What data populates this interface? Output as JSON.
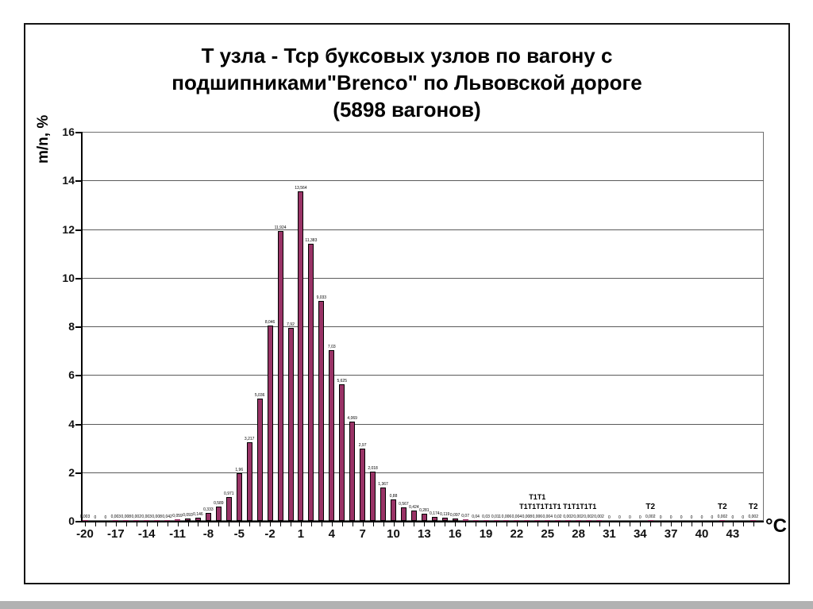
{
  "slide": {
    "title": {
      "line1": "Т узла - Тср буксовых узлов по вагону с",
      "line2": "подшипниками\"Brenco\" по Львовской дороге",
      "line3": "(5898 вагонов)"
    }
  },
  "chart_data": {
    "type": "bar",
    "title": "Т узла - Тср буксовых узлов по вагону с подшипниками\"Brenco\" по Львовской дороге (5898 вагонов)",
    "xlabel": "°C",
    "ylabel": "m/n, %",
    "xlim": [
      -20,
      46
    ],
    "ylim": [
      0,
      16
    ],
    "grid": "horizontal",
    "legend": "none",
    "bar_color": "#993366",
    "bar_border_color": "#000000",
    "y_ticks": [
      0,
      2,
      4,
      6,
      8,
      10,
      12,
      14,
      16
    ],
    "x_tick_labels": [
      -20,
      -17,
      -14,
      -11,
      -8,
      -5,
      -2,
      1,
      4,
      7,
      10,
      13,
      16,
      19,
      22,
      25,
      28,
      31,
      34,
      37,
      40,
      43
    ],
    "x": [
      -20,
      -19,
      -18,
      -17,
      -16,
      -15,
      -14,
      -13,
      -12,
      -11,
      -10,
      -9,
      -8,
      -7,
      -6,
      -5,
      -4,
      -3,
      -2,
      -1,
      0,
      1,
      2,
      3,
      4,
      5,
      6,
      7,
      8,
      9,
      10,
      11,
      12,
      13,
      14,
      15,
      16,
      17,
      18,
      19,
      20,
      21,
      22,
      23,
      24,
      25,
      26,
      27,
      28,
      29,
      30,
      31,
      32,
      33,
      34,
      35,
      36,
      37,
      38,
      39,
      40,
      41,
      42,
      43,
      44,
      45
    ],
    "values": [
      0.003,
      0,
      0,
      0.003,
      0.008,
      0.002,
      0.003,
      0.008,
      0.042,
      0.059,
      0.093,
      0.146,
      0.333,
      0.589,
      0.971,
      1.96,
      3.217,
      5.036,
      8.046,
      11.924,
      7.92,
      13.564,
      11.383,
      9.033,
      7.03,
      5.625,
      4.069,
      2.97,
      2.018,
      1.367,
      0.88,
      0.567,
      0.424,
      0.281,
      0.174,
      0.119,
      0.097,
      0.07,
      0.04,
      0.03,
      0.011,
      0.006,
      0.004,
      0.008,
      0.006,
      0.004,
      0.02,
      0.002,
      0.002,
      0.002,
      0.002,
      0,
      0,
      0,
      0,
      0.002,
      0,
      0,
      0,
      0,
      0,
      0,
      0.002,
      0,
      0,
      0.002
    ],
    "labels": [
      "0,003",
      "0",
      "0",
      "0,003",
      "0,008",
      "0,002",
      "0,003",
      "0,008",
      "0,042",
      "0,059",
      "0,093",
      "0,146",
      "0,333",
      "0,589",
      "0,971",
      "1,96",
      "3,217",
      "5,036",
      "8,046",
      "11,924",
      "7,92",
      "13,564",
      "11,383",
      "9,033",
      "7,03",
      "5,625",
      "4,069",
      "2,97",
      "2,018",
      "1,367",
      "0,88",
      "0,567",
      "0,424",
      "0,281",
      "0,174",
      "0,119",
      "0,097",
      "0,07",
      "0,04",
      "0,03",
      "0,011",
      "0,006",
      "0,004",
      "0,008",
      "0,006",
      "0,004",
      "0,02",
      "0,002",
      "0,002",
      "0,002",
      "0,002",
      "0",
      "0",
      "0",
      "0",
      "0,002",
      "0",
      "0",
      "0",
      "0",
      "0",
      "0",
      "0,002",
      "0",
      "0",
      "0,002"
    ],
    "annotations": [
      {
        "text": "Т1Т1",
        "u": 24,
        "row": 0
      },
      {
        "text": "Т1Т1Т1Т1Т1 Т1Т1Т1Т1",
        "u": 26,
        "row": 1
      },
      {
        "text": "Т2",
        "u": 35,
        "row": 1
      },
      {
        "text": "Т2",
        "u": 42,
        "row": 1
      },
      {
        "text": "Т2",
        "u": 45,
        "row": 1
      }
    ]
  }
}
